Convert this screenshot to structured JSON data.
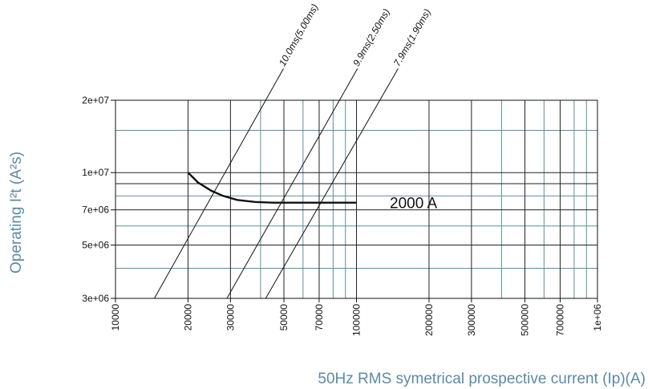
{
  "chart_data": {
    "type": "line",
    "xscale": "log",
    "yscale": "log",
    "xlim": [
      10000,
      1000000
    ],
    "ylim": [
      3000000,
      20000000
    ],
    "xlabel": "50Hz RMS symetrical prospective current (Ip)(A)",
    "ylabel": "Operating I²t (A²s)",
    "grid": true,
    "x_ticks": [
      {
        "value": 10000,
        "label": "10000"
      },
      {
        "value": 20000,
        "label": "20000"
      },
      {
        "value": 30000,
        "label": "30000"
      },
      {
        "value": 50000,
        "label": "50000"
      },
      {
        "value": 70000,
        "label": "70000"
      },
      {
        "value": 100000,
        "label": "100000"
      },
      {
        "value": 200000,
        "label": "200000"
      },
      {
        "value": 300000,
        "label": "300000"
      },
      {
        "value": 500000,
        "label": "500000"
      },
      {
        "value": 700000,
        "label": "700000"
      },
      {
        "value": 1000000,
        "label": "1e+06"
      }
    ],
    "y_ticks": [
      {
        "value": 3000000,
        "label": "3e+06"
      },
      {
        "value": 5000000,
        "label": "5e+06"
      },
      {
        "value": 7000000,
        "label": "7e+06"
      },
      {
        "value": 10000000,
        "label": "1e+07"
      },
      {
        "value": 20000000,
        "label": "2e+07"
      }
    ],
    "series": [
      {
        "name": "2000 A",
        "x": [
          20000,
          22000,
          25000,
          28000,
          32000,
          38000,
          45000,
          60000,
          80000,
          100000
        ],
        "y": [
          10000000,
          9100000,
          8400000,
          8000000,
          7700000,
          7550000,
          7500000,
          7500000,
          7500000,
          7500000
        ]
      }
    ],
    "reference_lines": [
      {
        "name": "10.0ms(5.00ms)",
        "x": [
          14500,
          42000
        ],
        "y": [
          3000000,
          20000000
        ]
      },
      {
        "name": "9.9ms(2.50ms)",
        "x": [
          29000,
          85000
        ],
        "y": [
          3000000,
          20000000
        ]
      },
      {
        "name": "7.9ms(1.90ms)",
        "x": [
          42000,
          125000
        ],
        "y": [
          3000000,
          20000000
        ]
      }
    ]
  }
}
